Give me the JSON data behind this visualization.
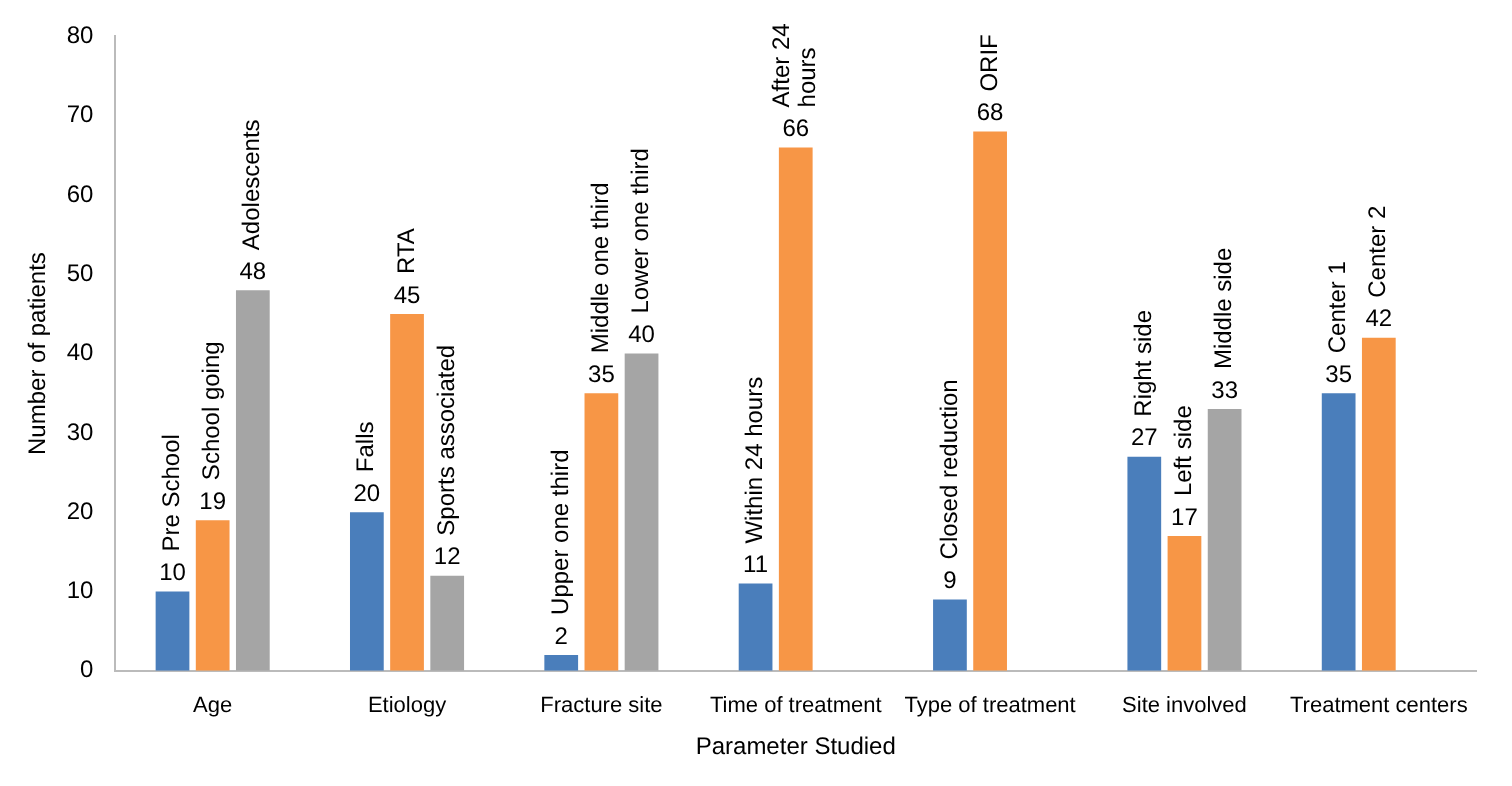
{
  "chart_data": {
    "type": "bar",
    "xlabel": "Parameter Studied",
    "ylabel": "Number of patients",
    "categories": [
      "Age",
      "Etiology",
      "Fracture site",
      "Time of treatment",
      "Type of treatment",
      "Site involved",
      "Treatment centers"
    ],
    "series": [
      {
        "color": "#4a7ebb",
        "values": [
          10,
          20,
          2,
          11,
          9,
          27,
          35
        ]
      },
      {
        "color": "#f79646",
        "values": [
          19,
          45,
          35,
          66,
          68,
          17,
          42
        ]
      },
      {
        "color": "#a5a5a5",
        "values": [
          48,
          12,
          40,
          null,
          null,
          33,
          null
        ]
      }
    ],
    "ylim": [
      0,
      80
    ],
    "yticks": [
      0,
      10,
      20,
      30,
      40,
      50,
      60,
      70,
      80
    ],
    "grid": false,
    "legend": false,
    "data_labels": true,
    "annotations": [
      "Pre School",
      "School going",
      "Adolescents",
      "Falls",
      "RTA",
      "Sports associated",
      "Upper one third",
      "Middle one third",
      "Lower one third",
      "Within 24 hours",
      "After 24 hours",
      "Closed reduction",
      "ORIF",
      "Right side",
      "Left side",
      "Middle side",
      "Center 1",
      "Center 2"
    ]
  }
}
